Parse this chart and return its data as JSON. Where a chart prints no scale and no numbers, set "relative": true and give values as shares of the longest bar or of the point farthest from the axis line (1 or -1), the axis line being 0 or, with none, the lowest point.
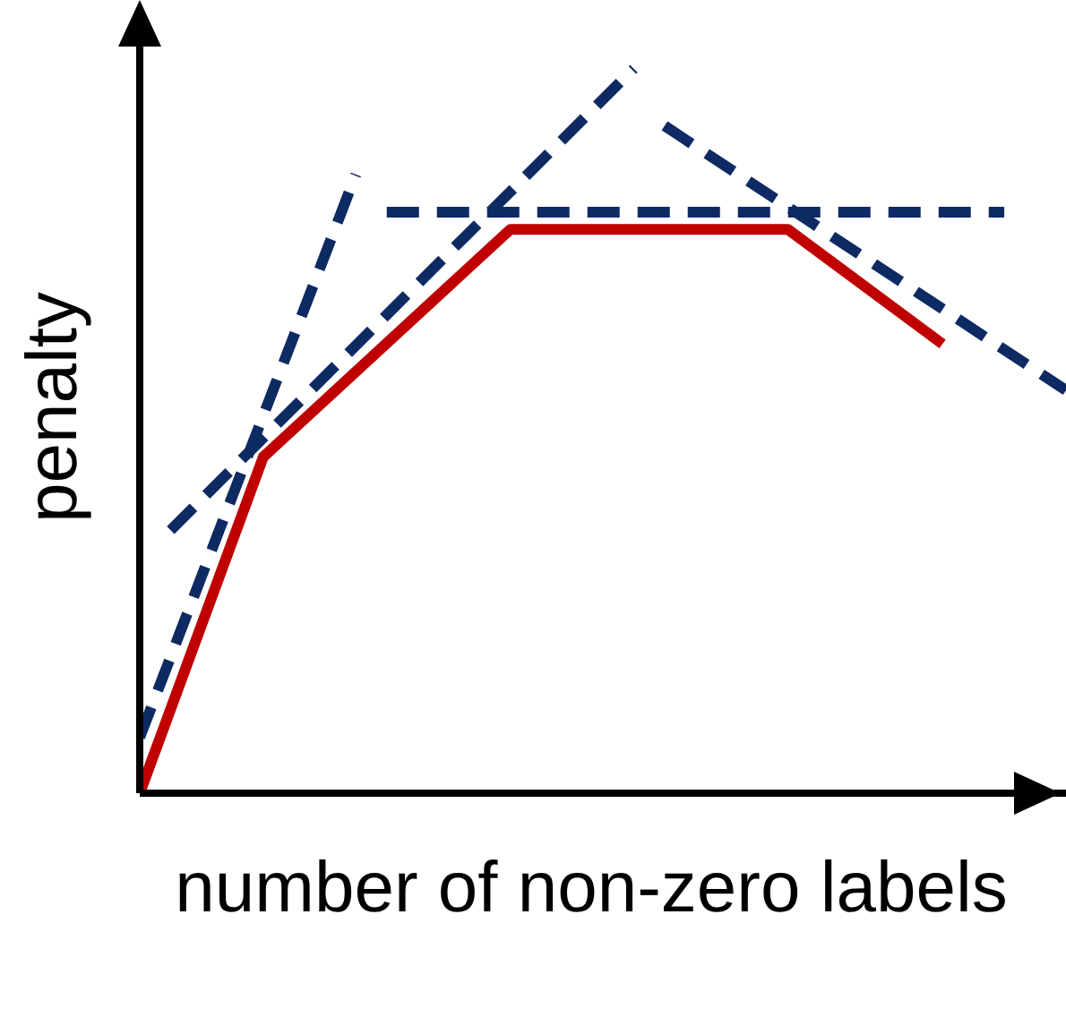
{
  "chart_data": {
    "type": "line",
    "relative": true,
    "xlabel": "number of non-zero labels",
    "ylabel": "penalty",
    "grid": false,
    "legend": false,
    "marker": "none",
    "categories": [
      null,
      null,
      null,
      null,
      null,
      null,
      null,
      null,
      null,
      null,
      null,
      null,
      null,
      null,
      null,
      null,
      null,
      null,
      null,
      null,
      null,
      null,
      null,
      null,
      null,
      null,
      null,
      null,
      null,
      null,
      null
    ],
    "series": [
      {
        "color": "#c00000",
        "line_style": "solid",
        "values": [
          0,
          null,
          null,
          null,
          0.464,
          null,
          null,
          null,
          null,
          null,
          null,
          null,
          0.778,
          null,
          null,
          null,
          null,
          null,
          null,
          null,
          null,
          0.778,
          null,
          null,
          null,
          null,
          0.62,
          null,
          null,
          null,
          null
        ]
      },
      {
        "color": "#0d2a63",
        "line_style": "dashed",
        "values": [
          0.077,
          null,
          null,
          null,
          null,
          null,
          null,
          0.854,
          null,
          null,
          null,
          null,
          null,
          null,
          null,
          null,
          null,
          null,
          null,
          null,
          null,
          null,
          null,
          null,
          null,
          null,
          null,
          null,
          null,
          null,
          null
        ]
      },
      {
        "color": "#0d2a63",
        "line_style": "dashed",
        "values": [
          null,
          0.363,
          null,
          null,
          null,
          null,
          null,
          null,
          null,
          null,
          null,
          null,
          null,
          null,
          null,
          null,
          1,
          null,
          null,
          null,
          null,
          null,
          null,
          null,
          null,
          null,
          null,
          null,
          null,
          null,
          null
        ]
      },
      {
        "color": "#0d2a63",
        "line_style": "dashed",
        "values": [
          null,
          null,
          null,
          null,
          null,
          null,
          null,
          null,
          0.802,
          null,
          null,
          null,
          null,
          null,
          null,
          null,
          null,
          null,
          null,
          null,
          null,
          null,
          null,
          null,
          null,
          null,
          null,
          null,
          0.802,
          null,
          null
        ]
      },
      {
        "color": "#0d2a63",
        "line_style": "dashed",
        "values": [
          null,
          null,
          null,
          null,
          null,
          null,
          null,
          null,
          null,
          null,
          null,
          null,
          null,
          null,
          null,
          null,
          null,
          0.921,
          null,
          null,
          null,
          null,
          null,
          null,
          null,
          null,
          null,
          null,
          null,
          null,
          0.556
        ]
      }
    ]
  }
}
